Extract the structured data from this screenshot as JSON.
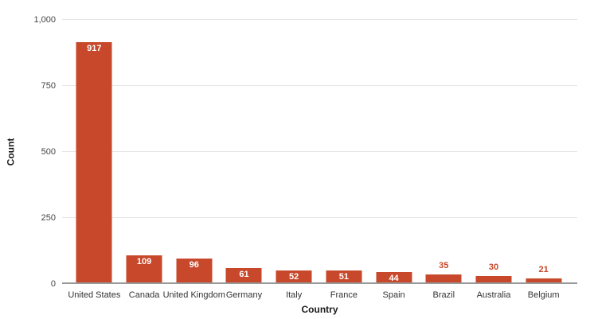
{
  "chart_data": {
    "type": "bar",
    "title": "",
    "categories": [
      "United States",
      "Canada",
      "United Kingdom",
      "Germany",
      "Italy",
      "France",
      "Spain",
      "Brazil",
      "Australia",
      "Belgium"
    ],
    "values": [
      917,
      109,
      96,
      61,
      52,
      51,
      44,
      35,
      30,
      21
    ],
    "xlabel": "Country",
    "ylabel": "Count",
    "ylim": [
      0,
      1000
    ],
    "yticks": [
      0,
      250,
      500,
      750,
      1000
    ],
    "ytick_labels": [
      "0",
      "250",
      "500",
      "750",
      "1,000"
    ],
    "grid": true,
    "legend": "none",
    "value_label_placement": "inside top of bar; above bar when bar is too short",
    "colors": {
      "bar": "#c7482a",
      "value_label_inside": "#ffffff",
      "value_label_outside": "#c7482a",
      "gridline": "#e6e6e6",
      "axis_line": "#999999",
      "tick_text": "#444444",
      "category_text": "#333333",
      "axis_title_text": "#1a1a1a"
    }
  }
}
